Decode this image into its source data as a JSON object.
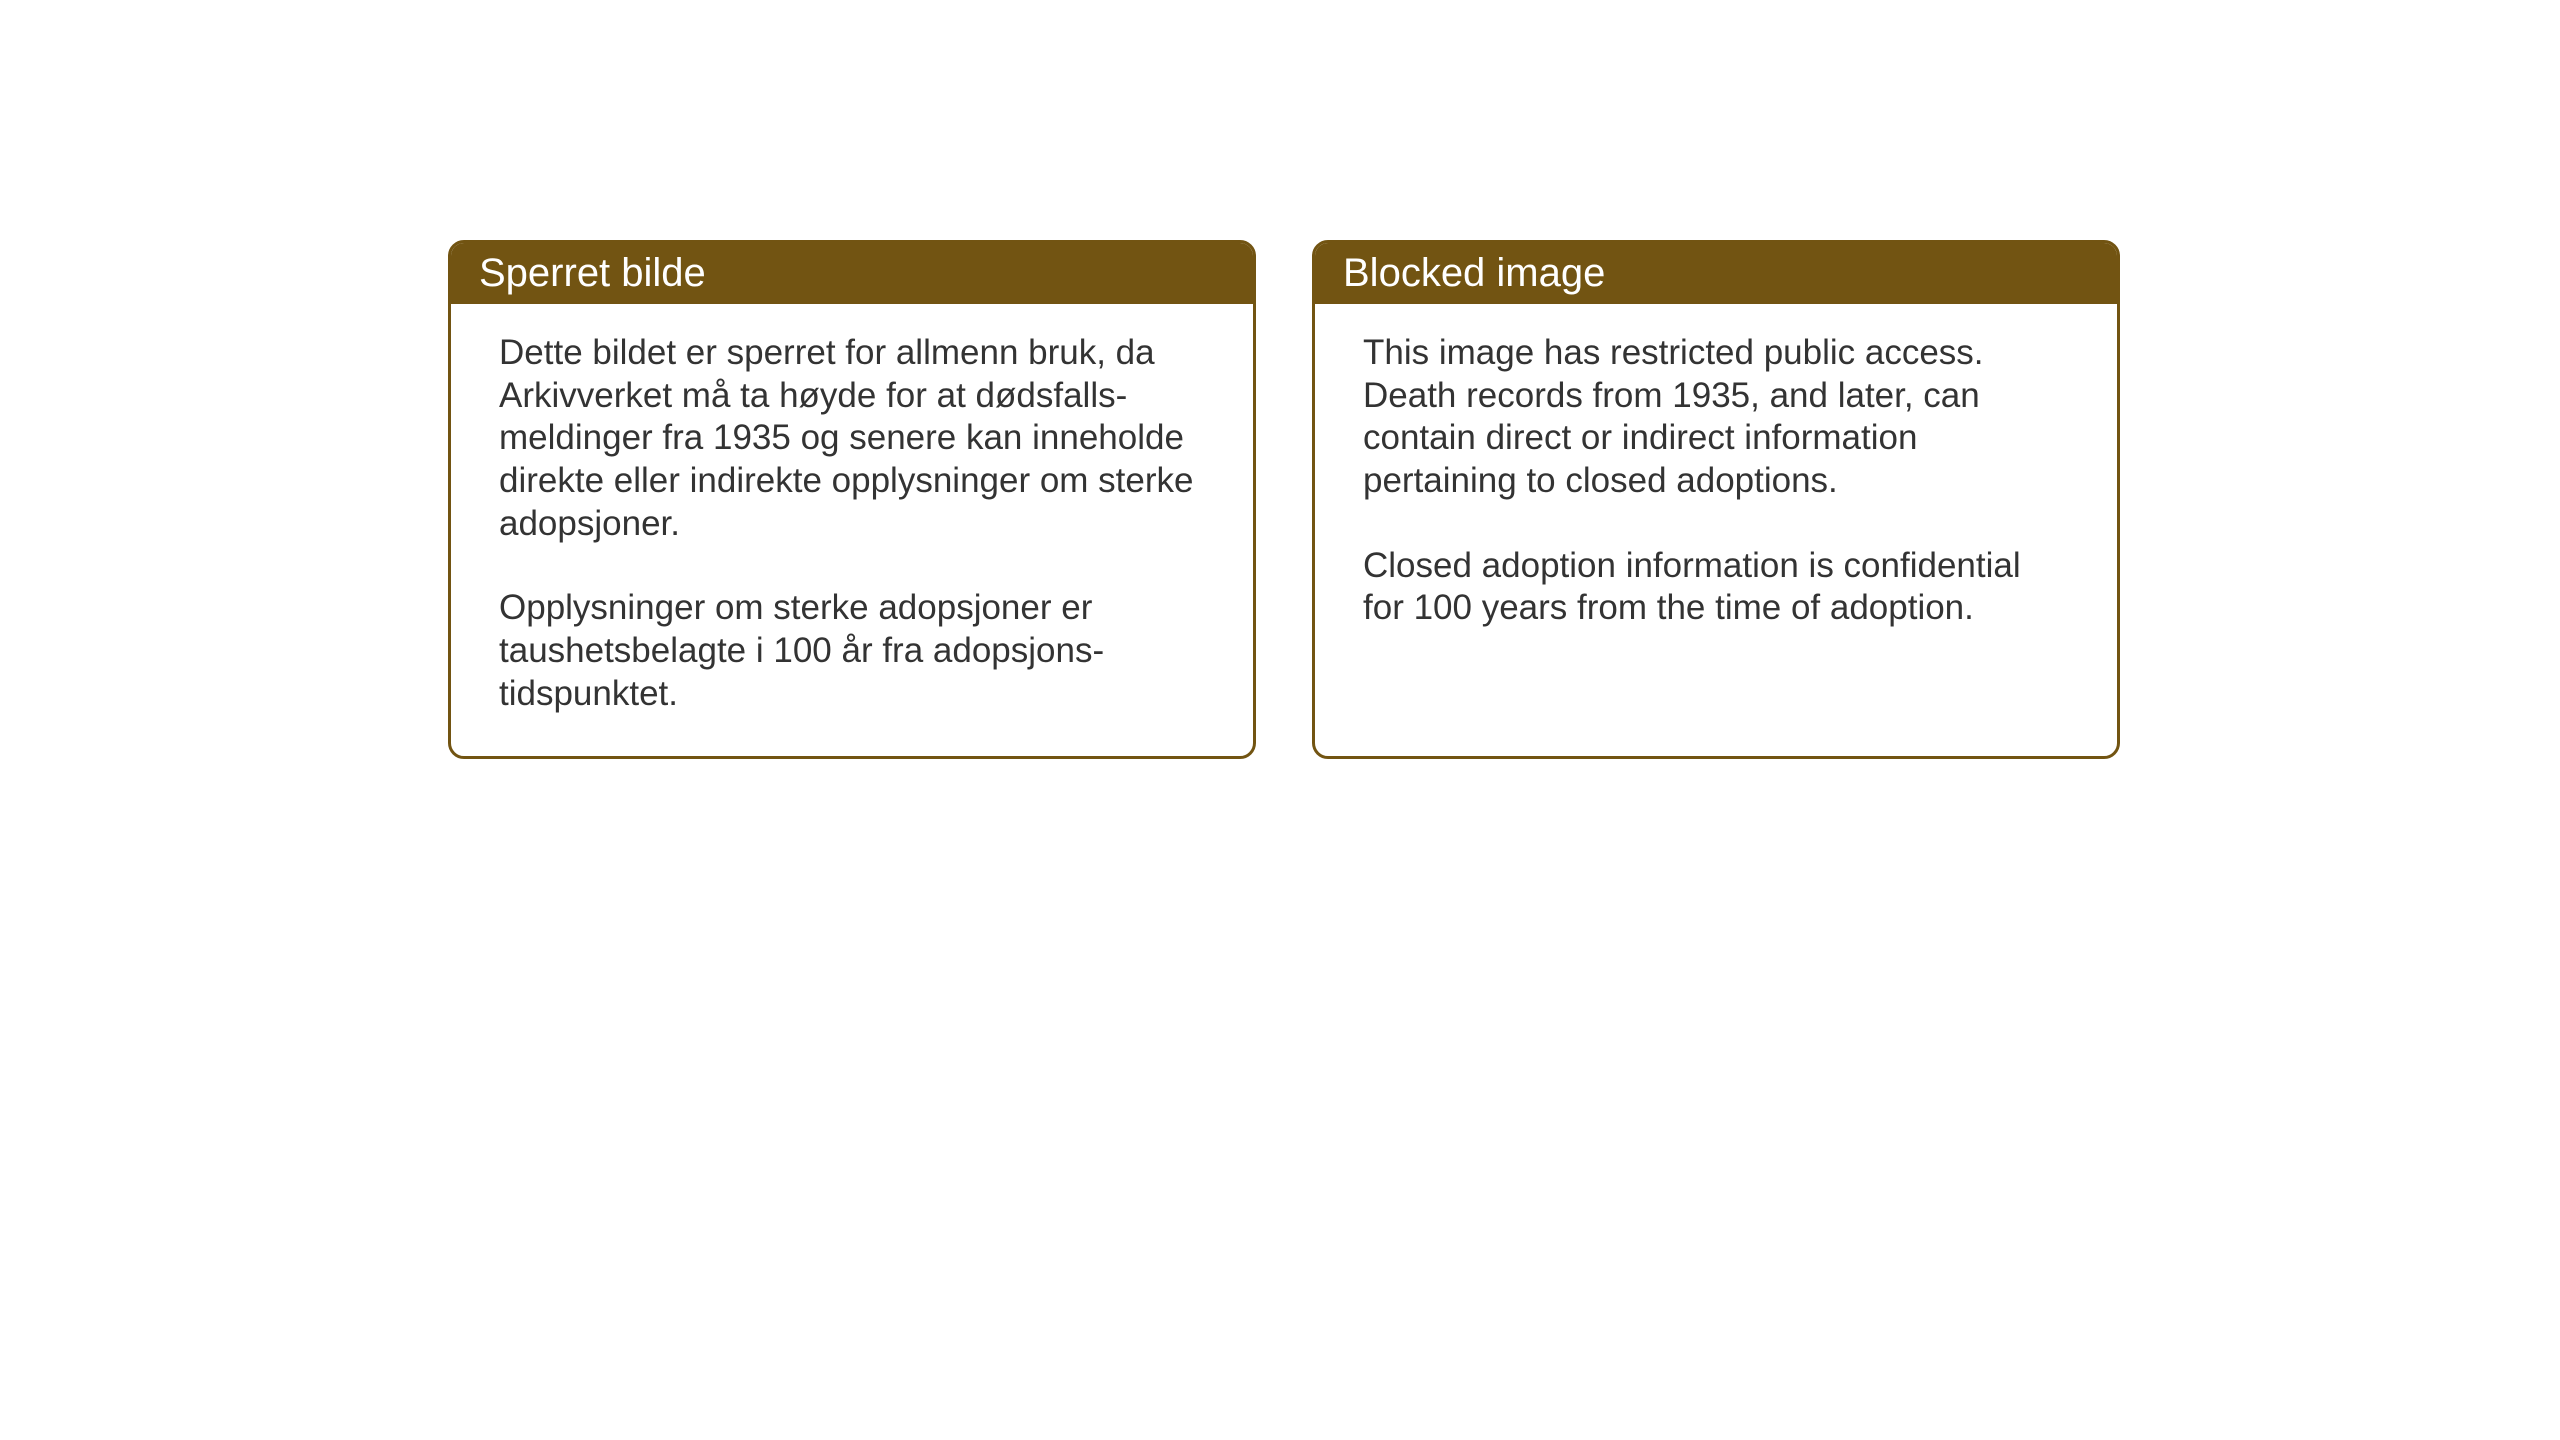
{
  "layout": {
    "background_color": "#ffffff",
    "box_border_color": "#725412",
    "box_header_bg": "#725412",
    "box_header_text_color": "#ffffff",
    "body_text_color": "#333333",
    "header_fontsize": 40,
    "body_fontsize": 35,
    "border_radius": 16,
    "border_width": 3
  },
  "notices": {
    "left": {
      "title": "Sperret bilde",
      "paragraph1": "Dette bildet er sperret for allmenn bruk, da Arkivverket må ta høyde for at dødsfalls-meldinger fra 1935 og senere kan inneholde direkte eller indirekte opplysninger om sterke adopsjoner.",
      "paragraph2": "Opplysninger om sterke adopsjoner er taushetsbelagte i 100 år fra adopsjons-tidspunktet."
    },
    "right": {
      "title": "Blocked image",
      "paragraph1": "This image has restricted public access. Death records from 1935, and later, can contain direct or indirect information pertaining to closed adoptions.",
      "paragraph2": "Closed adoption information is confidential for 100 years from the time of adoption."
    }
  }
}
